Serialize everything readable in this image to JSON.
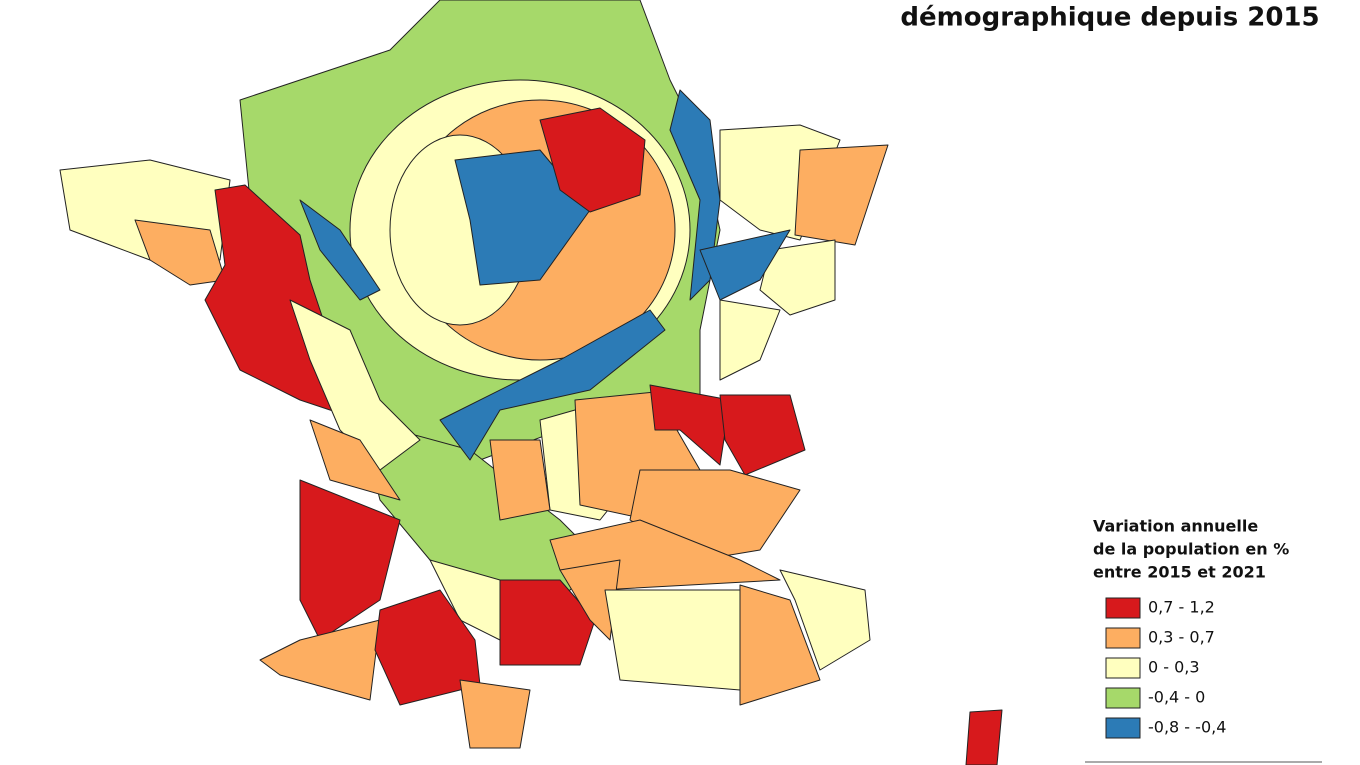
{
  "title": "démographique depuis 2015",
  "legend": {
    "title": [
      "Variation annuelle",
      "de la population en %",
      "entre 2015 et 2021"
    ],
    "items": [
      {
        "label": "0,7 - 1,2",
        "color": "#d7191c"
      },
      {
        "label": "0,3 - 0,7",
        "color": "#fdae61"
      },
      {
        "label": "0 - 0,3",
        "color": "#ffffbf"
      },
      {
        "label": "-0,4 - 0",
        "color": "#a6d96a"
      },
      {
        "label": "-0,8 - -0,4",
        "color": "#2c7bb6"
      }
    ]
  }
}
